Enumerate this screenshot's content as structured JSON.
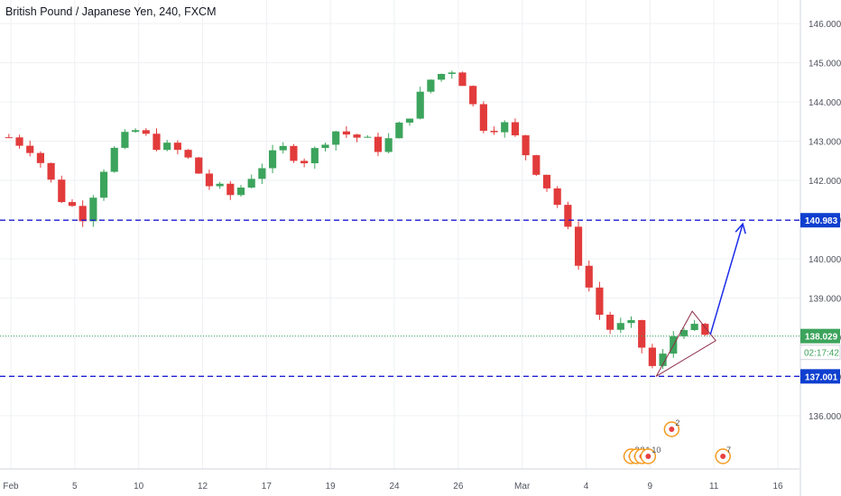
{
  "title": "British Pound / Japanese Yen, 240, FXCM",
  "colors": {
    "up": "#3ca45c",
    "down": "#e23b3b",
    "grid": "#eef0f3",
    "axis_text": "#50535e",
    "level_line": "#1f1fd6",
    "level_label_bg": "#0f3fcf",
    "current_line": "#3ca45c",
    "arrow": "#1a2be8",
    "triangle": "#8e2d49",
    "event_ring": "#f39a1f",
    "event_dot": "#e84040"
  },
  "chart_data": {
    "type": "candlestick",
    "ylim": [
      135.1,
      146.6
    ],
    "yticks": [
      "146.000",
      "145.000",
      "144.000",
      "143.000",
      "142.000",
      "141.000",
      "140.000",
      "139.000",
      "138.000",
      "137.000",
      "136.000"
    ],
    "xticks": [
      "Feb",
      "5",
      "10",
      "12",
      "17",
      "19",
      "24",
      "26",
      "Mar",
      "4",
      "9",
      "11",
      "16"
    ],
    "price_path": [
      {
        "date": "Feb",
        "price": 143.1
      },
      {
        "date": "Feb",
        "price": 142.8
      },
      {
        "date": "Feb",
        "price": 141.6
      },
      {
        "date": "Feb",
        "price": 141.1
      },
      {
        "date": "5",
        "price": 142.6
      },
      {
        "date": "5",
        "price": 143.3
      },
      {
        "date": "5",
        "price": 142.9
      },
      {
        "date": "5",
        "price": 142.7
      },
      {
        "date": "10",
        "price": 141.9
      },
      {
        "date": "10",
        "price": 141.6
      },
      {
        "date": "12",
        "price": 142.3
      },
      {
        "date": "12",
        "price": 142.8
      },
      {
        "date": "12",
        "price": 142.5
      },
      {
        "date": "17",
        "price": 143.3
      },
      {
        "date": "17",
        "price": 143.1
      },
      {
        "date": "17",
        "price": 142.8
      },
      {
        "date": "19",
        "price": 143.6
      },
      {
        "date": "19",
        "price": 144.6
      },
      {
        "date": "24",
        "price": 144.9
      },
      {
        "date": "24",
        "price": 143.4
      },
      {
        "date": "26",
        "price": 143.4
      },
      {
        "date": "26",
        "price": 142.5
      },
      {
        "date": "26",
        "price": 141.5
      },
      {
        "date": "Mar",
        "price": 139.8
      },
      {
        "date": "Mar",
        "price": 138.2
      },
      {
        "date": "4",
        "price": 138.3
      },
      {
        "date": "4",
        "price": 137.1
      },
      {
        "date": "4",
        "price": 138.4
      },
      {
        "date": "4",
        "price": 138.0
      }
    ],
    "horizontal_levels": [
      140.983,
      137.001
    ],
    "current_price": 138.029,
    "price_labels": [
      "140.983",
      "138.029",
      "137.001"
    ],
    "countdown": "02:17:42",
    "event_labels": [
      "2",
      "3",
      "1",
      "10",
      "2",
      "7"
    ]
  }
}
